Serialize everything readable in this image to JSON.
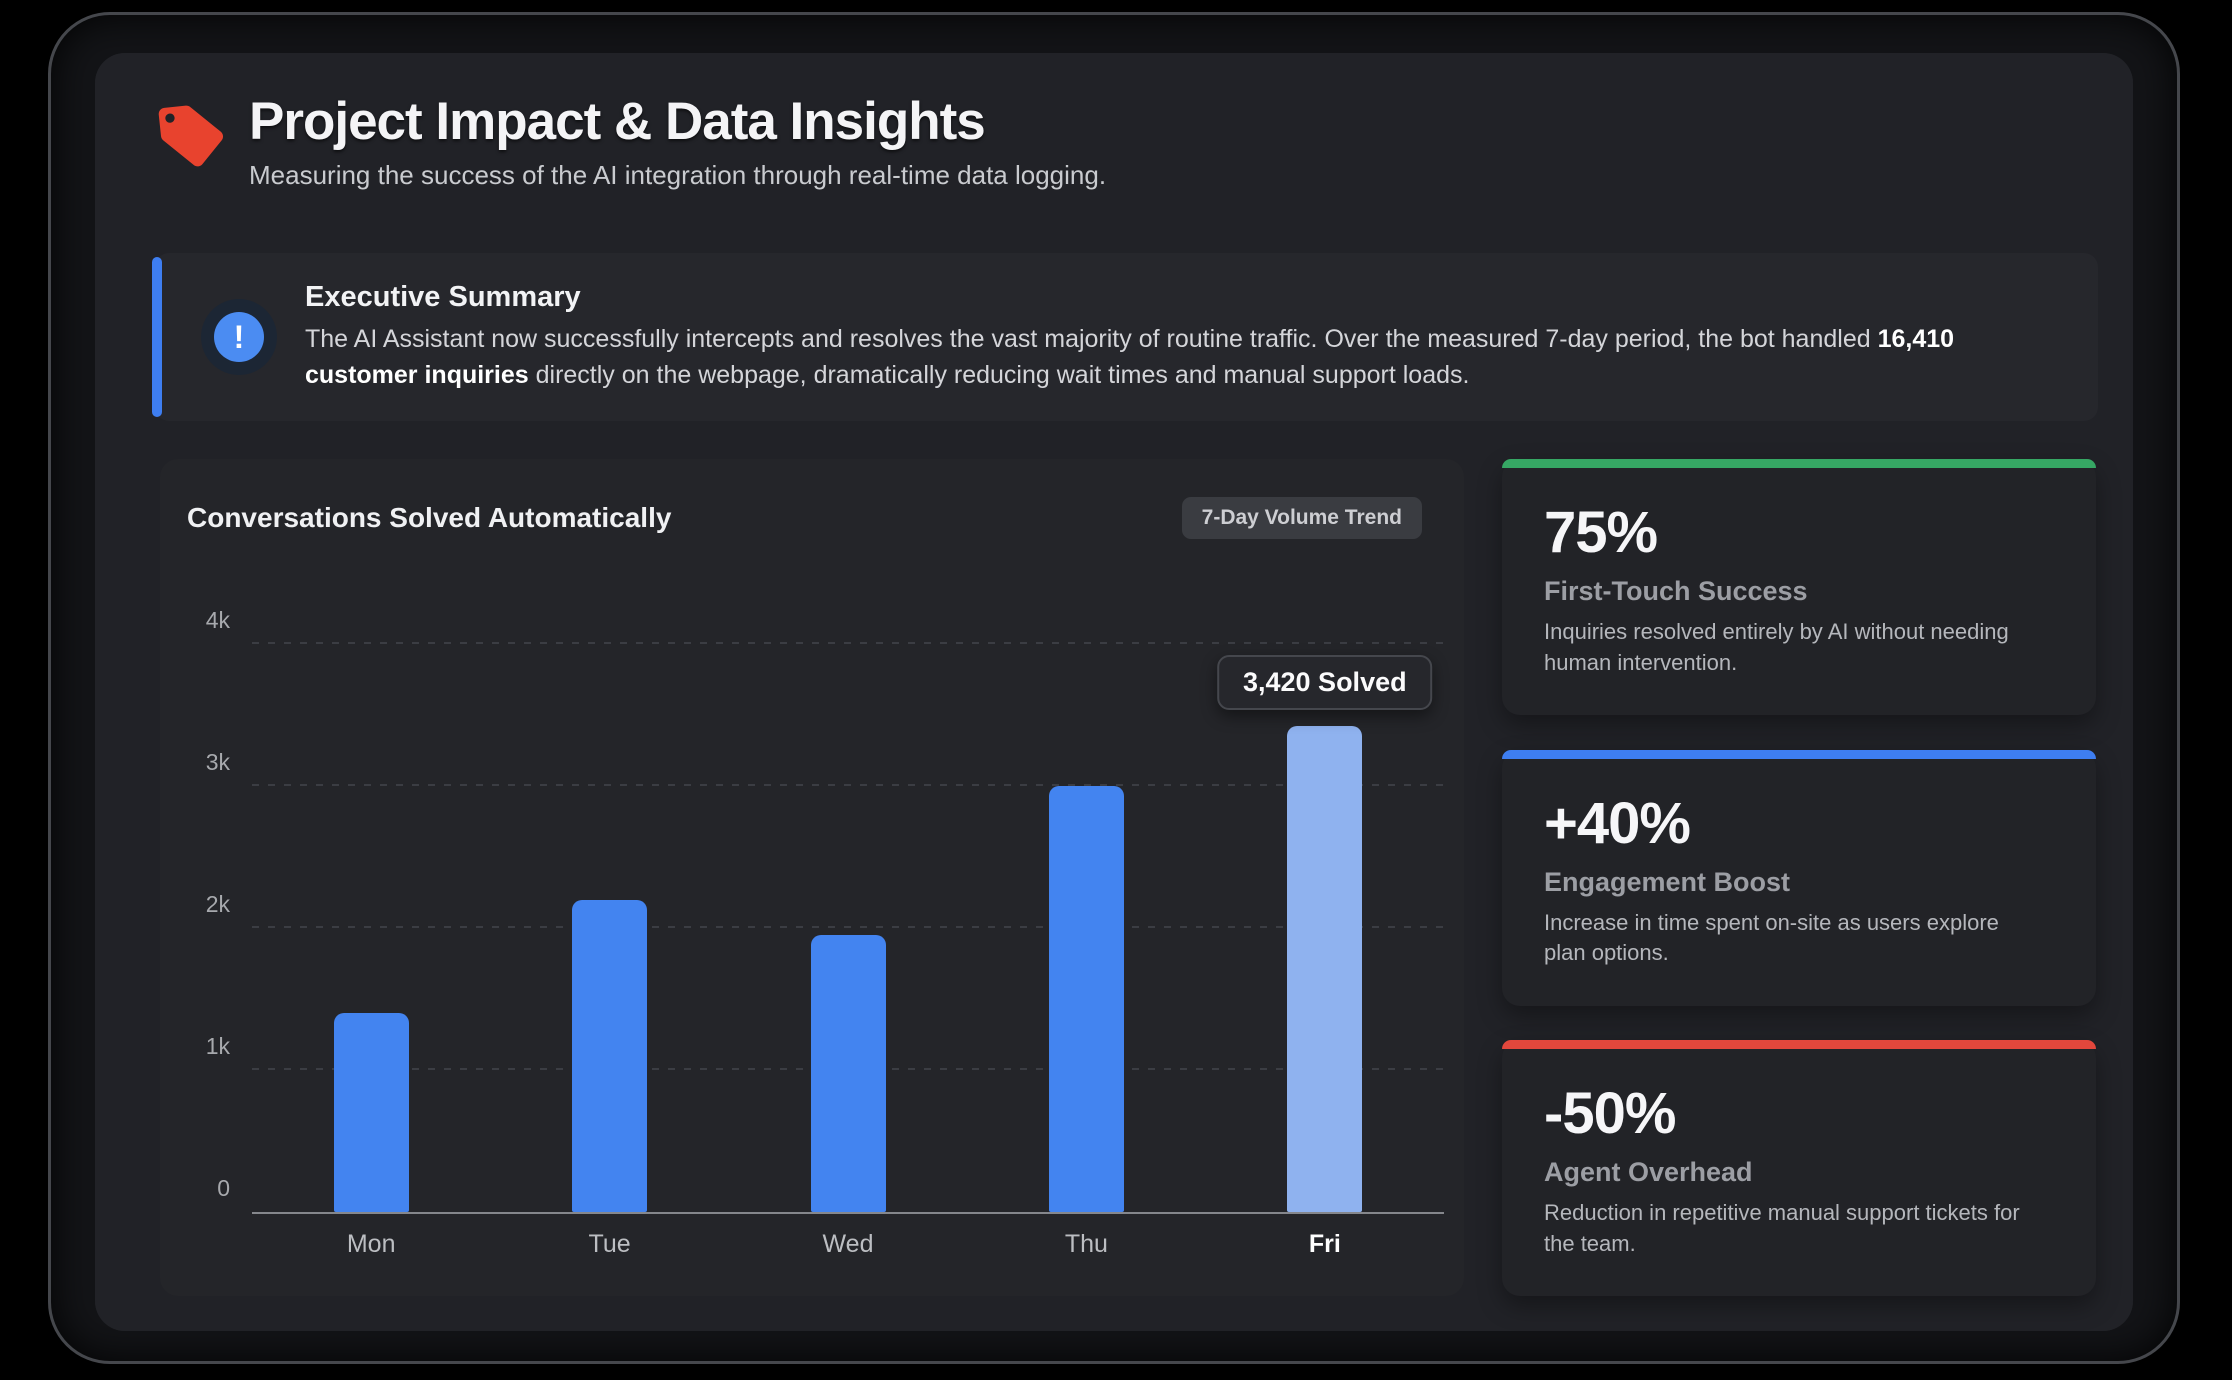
{
  "header": {
    "icon": "red-tag",
    "title": "Project Impact & Data Insights",
    "subtitle": "Measuring the success of the AI integration through real-time data logging."
  },
  "executive_summary": {
    "heading": "Executive Summary",
    "body_prefix": "The AI Assistant now successfully intercepts and resolves the vast majority of routine traffic. Over the measured 7-day period, the bot handled ",
    "body_highlight": "16,410 customer inquiries",
    "body_suffix": " directly on the webpage, dramatically reducing wait times and manual support loads.",
    "accent_color": "#3e7ef1"
  },
  "chart_panel": {
    "title": "Conversations Solved Automatically",
    "badge": "7-Day Volume Trend"
  },
  "chart_data": {
    "type": "bar",
    "title": "Conversations Solved Automatically",
    "categories": [
      "Mon",
      "Tue",
      "Wed",
      "Thu",
      "Fri"
    ],
    "values": [
      1400,
      2200,
      1950,
      3000,
      3420
    ],
    "ylim": [
      0,
      4000
    ],
    "y_ticks": [
      {
        "value": 0,
        "label": "0"
      },
      {
        "value": 1000,
        "label": "1k"
      },
      {
        "value": 2000,
        "label": "2k"
      },
      {
        "value": 3000,
        "label": "3k"
      },
      {
        "value": 4000,
        "label": "4k"
      }
    ],
    "grid": "horizontal-dashed",
    "legend": "none",
    "bar_color": "#4384f0",
    "highlight_index": 4,
    "highlight_bar_color": "#8fb2ef",
    "data_label": {
      "category": "Fri",
      "text": "3,420 Solved"
    }
  },
  "stat_cards": [
    {
      "value": "75%",
      "label": "First-Touch Success",
      "description": "Inquiries resolved entirely by AI without needing human intervention.",
      "accent_color": "#36a764"
    },
    {
      "value": "+40%",
      "label": "Engagement Boost",
      "description": "Increase in time spent on-site as users explore plan options.",
      "accent_color": "#3e7ef1"
    },
    {
      "value": "-50%",
      "label": "Agent Overhead",
      "description": "Reduction in repetitive manual support tickets for the team.",
      "accent_color": "#e2473c"
    }
  ]
}
